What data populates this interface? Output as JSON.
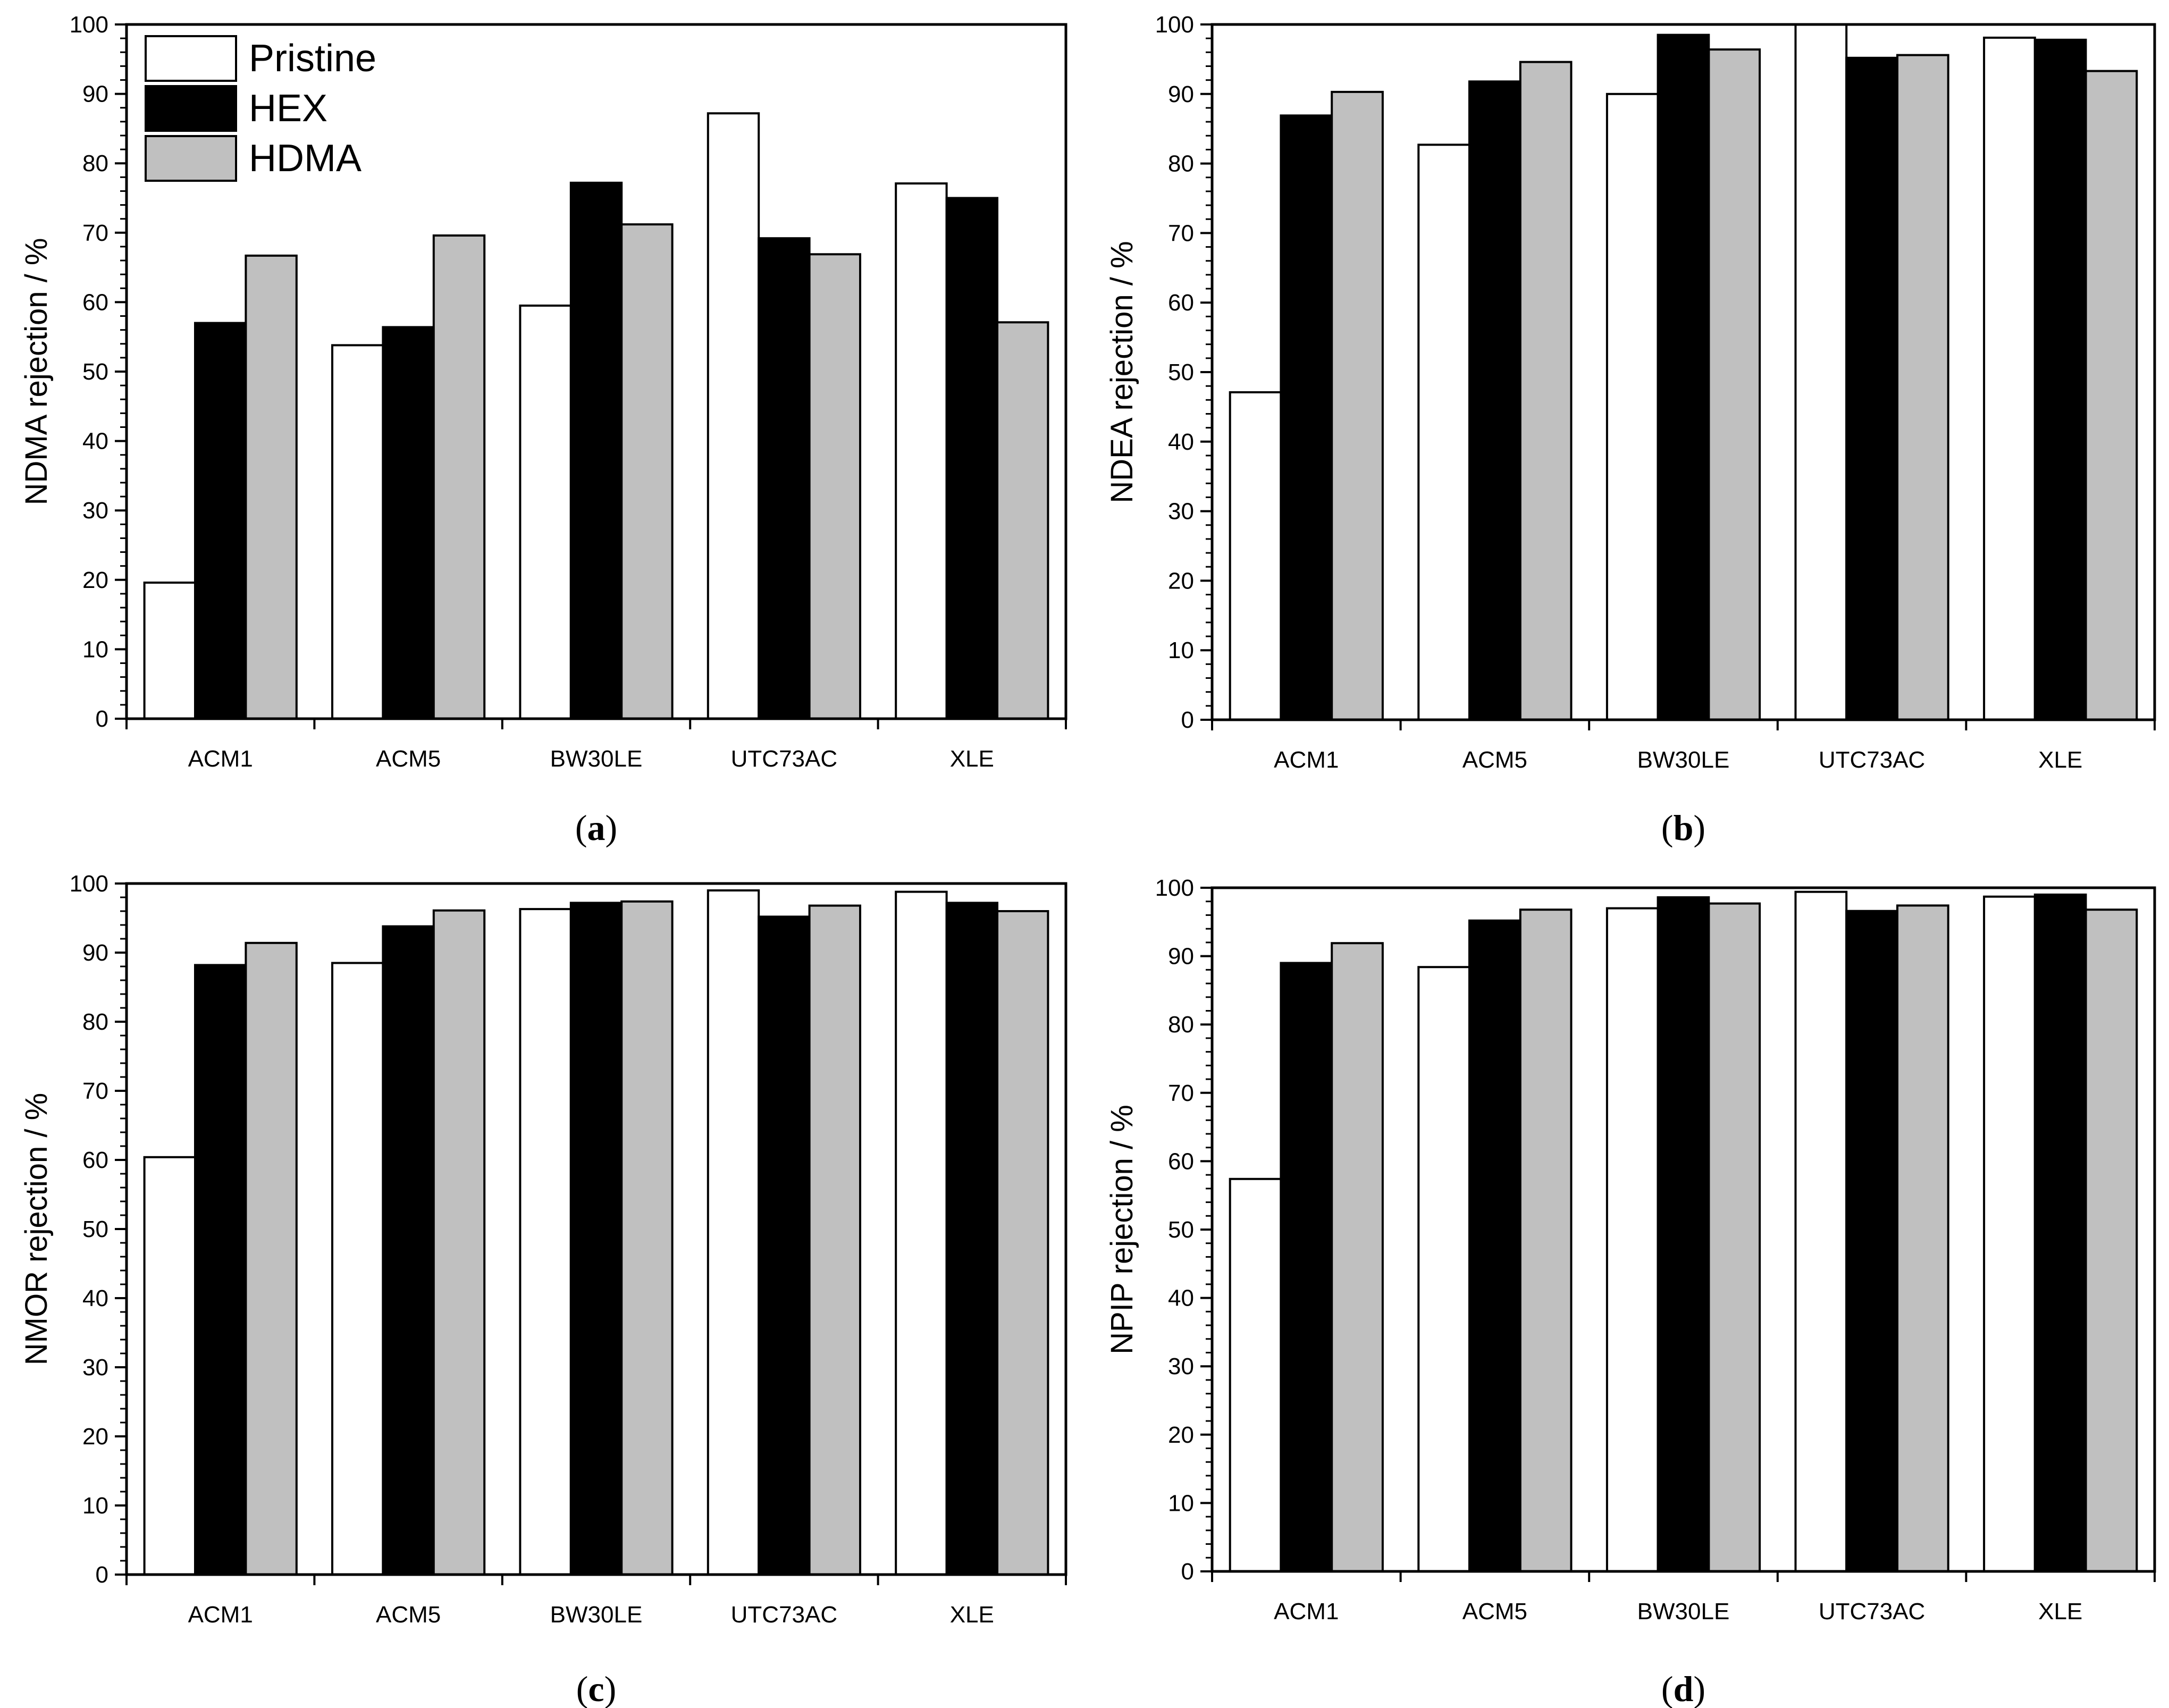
{
  "figure": {
    "colors": {
      "Pristine": "#ffffff",
      "HEX": "#000000",
      "HDMA": "#c0c0c0"
    },
    "legend": [
      "Pristine",
      "HEX",
      "HDMA"
    ]
  },
  "chart_data": [
    {
      "type": "bar",
      "panel": "(a)",
      "panel_letter": "a",
      "ylabel": "NDMA rejection / %",
      "xlabel": "",
      "categories": [
        "ACM1",
        "ACM5",
        "BW30LE",
        "UTC73AC",
        "XLE"
      ],
      "ylim": [
        0,
        100
      ],
      "yticks": [
        0,
        10,
        20,
        30,
        40,
        50,
        60,
        70,
        80,
        90,
        100
      ],
      "legend_position": "top-left",
      "series": [
        {
          "name": "Pristine",
          "values": [
            19.6,
            53.8,
            59.5,
            87.2,
            77.1
          ]
        },
        {
          "name": "HEX",
          "values": [
            57.0,
            56.4,
            77.2,
            69.2,
            75.0
          ]
        },
        {
          "name": "HDMA",
          "values": [
            66.7,
            69.6,
            71.2,
            66.9,
            57.1
          ]
        }
      ]
    },
    {
      "type": "bar",
      "panel": "(b)",
      "panel_letter": "b",
      "ylabel": "NDEA rejection / %",
      "xlabel": "",
      "categories": [
        "ACM1",
        "ACM5",
        "BW30LE",
        "UTC73AC",
        "XLE"
      ],
      "ylim": [
        0,
        100
      ],
      "yticks": [
        0,
        10,
        20,
        30,
        40,
        50,
        60,
        70,
        80,
        90,
        100
      ],
      "series": [
        {
          "name": "Pristine",
          "values": [
            47.1,
            82.7,
            90.0,
            100.0,
            98.1
          ]
        },
        {
          "name": "HEX",
          "values": [
            86.9,
            91.8,
            98.5,
            95.2,
            97.8
          ]
        },
        {
          "name": "HDMA",
          "values": [
            90.3,
            94.6,
            96.4,
            95.6,
            93.3
          ]
        }
      ]
    },
    {
      "type": "bar",
      "panel": "(c)",
      "panel_letter": "c",
      "ylabel": "NMOR rejection / %",
      "xlabel": "",
      "categories": [
        "ACM1",
        "ACM5",
        "BW30LE",
        "UTC73AC",
        "XLE"
      ],
      "ylim": [
        0,
        100
      ],
      "yticks": [
        0,
        10,
        20,
        30,
        40,
        50,
        60,
        70,
        80,
        90,
        100
      ],
      "series": [
        {
          "name": "Pristine",
          "values": [
            60.4,
            88.5,
            96.3,
            99.0,
            98.8
          ]
        },
        {
          "name": "HEX",
          "values": [
            88.2,
            93.8,
            97.2,
            95.2,
            97.2
          ]
        },
        {
          "name": "HDMA",
          "values": [
            91.4,
            96.1,
            97.4,
            96.8,
            96.0
          ]
        }
      ]
    },
    {
      "type": "bar",
      "panel": "(d)",
      "panel_letter": "d",
      "ylabel": "NPIP rejection / %",
      "xlabel": "",
      "categories": [
        "ACM1",
        "ACM5",
        "BW30LE",
        "UTC73AC",
        "XLE"
      ],
      "ylim": [
        0,
        100
      ],
      "yticks": [
        0,
        10,
        20,
        30,
        40,
        50,
        60,
        70,
        80,
        90,
        100
      ],
      "series": [
        {
          "name": "Pristine",
          "values": [
            57.4,
            88.4,
            97.0,
            99.4,
            98.7
          ]
        },
        {
          "name": "HEX",
          "values": [
            89.0,
            95.2,
            98.6,
            96.6,
            99.0
          ]
        },
        {
          "name": "HDMA",
          "values": [
            91.9,
            96.8,
            97.7,
            97.4,
            96.8
          ]
        }
      ]
    }
  ]
}
